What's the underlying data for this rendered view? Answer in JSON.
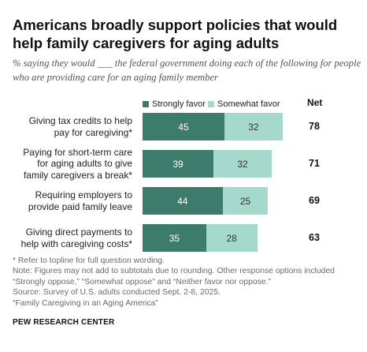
{
  "title": "Americans broadly support policies that would help family caregivers for aging adults",
  "subtitle": "% saying they would ___ the federal government doing each of the following for people who are providing care for an aging family member",
  "colors": {
    "strongly": "#3d7c6a",
    "somewhat": "#a5d9cb"
  },
  "net_header": "Net",
  "chart_data": {
    "type": "bar",
    "orientation": "horizontal",
    "stacked": true,
    "categories": [
      "Giving tax credits to help pay for caregiving*",
      "Paying for short-term care for aging adults to give family caregivers a break*",
      "Requiring employers to provide paid family leave",
      "Giving direct payments to help with caregiving costs*"
    ],
    "category_lines": [
      [
        "Giving tax credits to help",
        "pay for caregiving*"
      ],
      [
        "Paying for short-term care",
        "for aging adults to give",
        "family caregivers a break*"
      ],
      [
        "Requiring employers to",
        "provide paid family leave"
      ],
      [
        "Giving direct payments to",
        "help with caregiving costs*"
      ]
    ],
    "series": [
      {
        "name": "Strongly favor",
        "values": [
          45,
          39,
          44,
          35
        ]
      },
      {
        "name": "Somewhat favor",
        "values": [
          32,
          32,
          25,
          28
        ]
      }
    ],
    "net": [
      78,
      71,
      69,
      63
    ],
    "legend_position": "top",
    "grid": false
  },
  "notes": [
    "* Refer to topline for full question wording.",
    "Note: Figures may not add to subtotals due to rounding. Other response options included",
    "“Strongly oppose,” “Somewhat oppose” and “Neither favor nor oppose.”",
    "Source: Survey of U.S. adults conducted Sept. 2-8, 2025.",
    "“Family Caregiving in an Aging America”"
  ],
  "source_org": "PEW RESEARCH CENTER"
}
